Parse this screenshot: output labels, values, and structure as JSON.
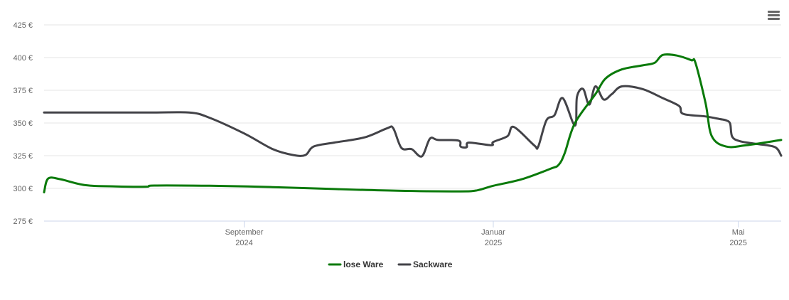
{
  "menu_icon": "hamburger-menu-icon",
  "chart_data": {
    "type": "line",
    "title": "",
    "xlabel": "",
    "ylabel": "",
    "y_unit": "€",
    "ylim": [
      275,
      425
    ],
    "y_ticks": [
      275,
      300,
      325,
      350,
      375,
      400,
      425
    ],
    "y_tick_labels": [
      "275 €",
      "300 €",
      "325 €",
      "350 €",
      "375 €",
      "400 €",
      "425 €"
    ],
    "x_range": [
      "2024-05-26",
      "2025-05-22"
    ],
    "x_ticks": [
      {
        "date": "2024-09-01",
        "month": "September",
        "year": "2024"
      },
      {
        "date": "2025-01-01",
        "month": "Januar",
        "year": "2025"
      },
      {
        "date": "2025-05-01",
        "month": "Mai",
        "year": "2025"
      }
    ],
    "grid": true,
    "legend_position": "bottom-center",
    "series": [
      {
        "name": "lose Ware",
        "color": "#0a7a0a",
        "points": [
          [
            "2024-05-26",
            297
          ],
          [
            "2024-05-28",
            307.5
          ],
          [
            "2024-06-03",
            307
          ],
          [
            "2024-06-15",
            302.5
          ],
          [
            "2024-06-30",
            301.5
          ],
          [
            "2024-07-15",
            301.3
          ],
          [
            "2024-07-19",
            302.2
          ],
          [
            "2024-08-15",
            302
          ],
          [
            "2024-09-15",
            301
          ],
          [
            "2024-10-15",
            299.5
          ],
          [
            "2024-11-15",
            298.2
          ],
          [
            "2024-12-15",
            297.7
          ],
          [
            "2024-12-24",
            298.5
          ],
          [
            "2025-01-01",
            302
          ],
          [
            "2025-01-15",
            307
          ],
          [
            "2025-01-29",
            315
          ],
          [
            "2025-02-02",
            318
          ],
          [
            "2025-02-05",
            327
          ],
          [
            "2025-02-10",
            350
          ],
          [
            "2025-02-20",
            372
          ],
          [
            "2025-02-25",
            384
          ],
          [
            "2025-03-05",
            391
          ],
          [
            "2025-03-15",
            394
          ],
          [
            "2025-03-21",
            396
          ],
          [
            "2025-03-25",
            402
          ],
          [
            "2025-04-01",
            401.5
          ],
          [
            "2025-04-08",
            398
          ],
          [
            "2025-04-10",
            396
          ],
          [
            "2025-04-15",
            365
          ],
          [
            "2025-04-18",
            340
          ],
          [
            "2025-04-25",
            332
          ],
          [
            "2025-05-05",
            333
          ],
          [
            "2025-05-22",
            337
          ]
        ]
      },
      {
        "name": "Sackware",
        "color": "#434348",
        "points": [
          [
            "2024-05-26",
            358
          ],
          [
            "2024-07-15",
            358
          ],
          [
            "2024-08-05",
            358
          ],
          [
            "2024-08-15",
            354
          ],
          [
            "2024-09-01",
            342
          ],
          [
            "2024-09-15",
            330
          ],
          [
            "2024-09-25",
            325.5
          ],
          [
            "2024-10-01",
            325.5
          ],
          [
            "2024-10-05",
            332
          ],
          [
            "2024-10-15",
            335
          ],
          [
            "2024-10-30",
            339
          ],
          [
            "2024-11-10",
            346
          ],
          [
            "2024-11-13",
            346
          ],
          [
            "2024-11-17",
            331
          ],
          [
            "2024-11-22",
            330
          ],
          [
            "2024-11-27",
            324.5
          ],
          [
            "2024-12-01",
            338
          ],
          [
            "2024-12-05",
            337
          ],
          [
            "2024-12-15",
            336.5
          ],
          [
            "2024-12-31",
            333
          ],
          [
            "2024-12-16",
            332
          ],
          [
            "2024-12-19",
            331.5
          ],
          [
            "2024-12-20",
            335
          ],
          [
            "2025-01-01",
            335.5
          ],
          [
            "2025-01-08",
            340
          ],
          [
            "2025-01-11",
            347
          ],
          [
            "2025-01-21",
            333
          ],
          [
            "2025-01-23",
            332
          ],
          [
            "2025-01-27",
            352
          ],
          [
            "2025-01-31",
            356
          ],
          [
            "2025-02-04",
            369
          ],
          [
            "2025-02-10",
            348
          ],
          [
            "2025-02-11",
            370
          ],
          [
            "2025-02-14",
            376
          ],
          [
            "2025-02-17",
            364
          ],
          [
            "2025-02-20",
            378
          ],
          [
            "2025-02-24",
            368
          ],
          [
            "2025-02-28",
            372
          ],
          [
            "2025-03-05",
            378
          ],
          [
            "2025-03-15",
            376
          ],
          [
            "2025-03-25",
            369
          ],
          [
            "2025-04-02",
            363
          ],
          [
            "2025-04-04",
            357
          ],
          [
            "2025-04-15",
            355
          ],
          [
            "2025-04-22",
            353
          ],
          [
            "2025-04-25",
            352
          ],
          [
            "2025-04-27",
            349.5
          ],
          [
            "2025-04-28",
            339.5
          ],
          [
            "2025-05-02",
            336
          ],
          [
            "2025-05-10",
            334
          ],
          [
            "2025-05-19",
            331.5
          ],
          [
            "2025-05-22",
            325
          ]
        ]
      }
    ]
  }
}
